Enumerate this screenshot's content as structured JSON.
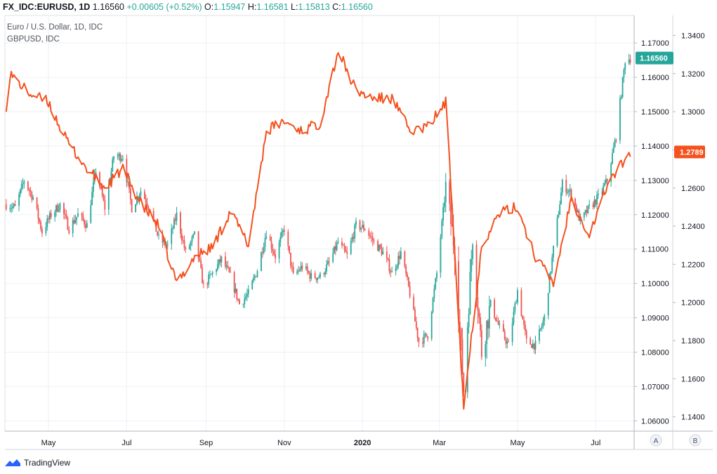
{
  "header": {
    "symbol": "FX_IDC:EURUSD, 1D",
    "last": "1.16560",
    "change": "+0.00605 (+0.52%)",
    "o_label": "O:",
    "o": "1.15947",
    "h_label": "H:",
    "h": "1.16581",
    "l_label": "L:",
    "l": "1.15813",
    "c_label": "C:",
    "c": "1.16560"
  },
  "legend": {
    "main": "Euro / U.S. Dollar, 1D, IDC",
    "compare": "GBPUSD, IDC"
  },
  "footer": {
    "brand": "TradingView",
    "logo_icon": "tradingview-logo-icon"
  },
  "scale_buttons": [
    "A",
    "B"
  ],
  "colors": {
    "up": "#26a69a",
    "down": "#ef5350",
    "compare": "#f4511e",
    "grid": "#eef0f3"
  },
  "chart_data": {
    "type": "line",
    "x_labels": [
      "May",
      "Jul",
      "Sep",
      "Nov",
      "2020",
      "Mar",
      "May",
      "Jul"
    ],
    "left_axis_ticks": [
      "1.06000",
      "1.07000",
      "1.08000",
      "1.09000",
      "1.10000",
      "1.11000",
      "1.12000",
      "1.13000",
      "1.14000",
      "1.15000",
      "1.16000",
      "1.17000"
    ],
    "right_axis_ticks": [
      "1.1400",
      "1.1600",
      "1.1800",
      "1.2000",
      "1.2200",
      "1.2400",
      "1.2600",
      "1.2800",
      "1.3000",
      "1.3200",
      "1.3400"
    ],
    "left_ylim": [
      1.057,
      1.178
    ],
    "right_ylim": [
      1.1325,
      1.3505
    ],
    "grid": true,
    "last_value_labels": {
      "eurusd": "1.16560",
      "gbpusd": "1.2789"
    },
    "series": [
      {
        "name": "EURUSD",
        "kind": "candlestick",
        "axis": "left",
        "points": [
          {
            "d": "2019-03-29",
            "v": 1.123
          },
          {
            "d": "2019-04-05",
            "v": 1.122
          },
          {
            "d": "2019-04-12",
            "v": 1.13
          },
          {
            "d": "2019-04-19",
            "v": 1.125
          },
          {
            "d": "2019-04-26",
            "v": 1.115
          },
          {
            "d": "2019-05-03",
            "v": 1.12
          },
          {
            "d": "2019-05-10",
            "v": 1.123
          },
          {
            "d": "2019-05-17",
            "v": 1.116
          },
          {
            "d": "2019-05-24",
            "v": 1.12
          },
          {
            "d": "2019-05-31",
            "v": 1.117
          },
          {
            "d": "2019-06-07",
            "v": 1.133
          },
          {
            "d": "2019-06-14",
            "v": 1.122
          },
          {
            "d": "2019-06-21",
            "v": 1.137
          },
          {
            "d": "2019-06-28",
            "v": 1.137
          },
          {
            "d": "2019-07-05",
            "v": 1.122
          },
          {
            "d": "2019-07-12",
            "v": 1.127
          },
          {
            "d": "2019-07-19",
            "v": 1.122
          },
          {
            "d": "2019-07-26",
            "v": 1.113
          },
          {
            "d": "2019-08-02",
            "v": 1.111
          },
          {
            "d": "2019-08-09",
            "v": 1.12
          },
          {
            "d": "2019-08-16",
            "v": 1.109
          },
          {
            "d": "2019-08-23",
            "v": 1.114
          },
          {
            "d": "2019-08-30",
            "v": 1.099
          },
          {
            "d": "2019-09-06",
            "v": 1.103
          },
          {
            "d": "2019-09-13",
            "v": 1.107
          },
          {
            "d": "2019-09-20",
            "v": 1.102
          },
          {
            "d": "2019-09-27",
            "v": 1.094
          },
          {
            "d": "2019-10-04",
            "v": 1.097
          },
          {
            "d": "2019-10-11",
            "v": 1.104
          },
          {
            "d": "2019-10-18",
            "v": 1.115
          },
          {
            "d": "2019-10-25",
            "v": 1.108
          },
          {
            "d": "2019-11-01",
            "v": 1.116
          },
          {
            "d": "2019-11-08",
            "v": 1.102
          },
          {
            "d": "2019-11-15",
            "v": 1.105
          },
          {
            "d": "2019-11-22",
            "v": 1.102
          },
          {
            "d": "2019-11-29",
            "v": 1.102
          },
          {
            "d": "2019-12-06",
            "v": 1.106
          },
          {
            "d": "2019-12-13",
            "v": 1.112
          },
          {
            "d": "2019-12-20",
            "v": 1.108
          },
          {
            "d": "2019-12-27",
            "v": 1.117
          },
          {
            "d": "2020-01-03",
            "v": 1.116
          },
          {
            "d": "2020-01-10",
            "v": 1.112
          },
          {
            "d": "2020-01-17",
            "v": 1.109
          },
          {
            "d": "2020-01-24",
            "v": 1.103
          },
          {
            "d": "2020-01-31",
            "v": 1.109
          },
          {
            "d": "2020-02-07",
            "v": 1.097
          },
          {
            "d": "2020-02-14",
            "v": 1.083
          },
          {
            "d": "2020-02-21",
            "v": 1.085
          },
          {
            "d": "2020-02-28",
            "v": 1.103
          },
          {
            "d": "2020-03-06",
            "v": 1.128
          },
          {
            "d": "2020-03-13",
            "v": 1.11
          },
          {
            "d": "2020-03-20",
            "v": 1.069
          },
          {
            "d": "2020-03-27",
            "v": 1.114
          },
          {
            "d": "2020-04-03",
            "v": 1.08
          },
          {
            "d": "2020-04-10",
            "v": 1.094
          },
          {
            "d": "2020-04-17",
            "v": 1.087
          },
          {
            "d": "2020-04-24",
            "v": 1.082
          },
          {
            "d": "2020-05-01",
            "v": 1.098
          },
          {
            "d": "2020-05-08",
            "v": 1.083
          },
          {
            "d": "2020-05-15",
            "v": 1.082
          },
          {
            "d": "2020-05-22",
            "v": 1.09
          },
          {
            "d": "2020-05-29",
            "v": 1.11
          },
          {
            "d": "2020-06-05",
            "v": 1.129
          },
          {
            "d": "2020-06-12",
            "v": 1.126
          },
          {
            "d": "2020-06-19",
            "v": 1.118
          },
          {
            "d": "2020-06-26",
            "v": 1.122
          },
          {
            "d": "2020-07-03",
            "v": 1.125
          },
          {
            "d": "2020-07-10",
            "v": 1.13
          },
          {
            "d": "2020-07-17",
            "v": 1.143
          },
          {
            "d": "2020-07-24",
            "v": 1.165
          },
          {
            "d": "2020-07-28",
            "v": 1.1656
          }
        ]
      },
      {
        "name": "GBPUSD",
        "kind": "line",
        "axis": "right",
        "points": [
          {
            "d": "2019-03-29",
            "v": 1.303
          },
          {
            "d": "2019-04-01",
            "v": 1.32
          },
          {
            "d": "2019-04-15",
            "v": 1.31
          },
          {
            "d": "2019-05-01",
            "v": 1.305
          },
          {
            "d": "2019-05-15",
            "v": 1.285
          },
          {
            "d": "2019-05-31",
            "v": 1.27
          },
          {
            "d": "2019-06-14",
            "v": 1.26
          },
          {
            "d": "2019-06-28",
            "v": 1.27
          },
          {
            "d": "2019-07-12",
            "v": 1.252
          },
          {
            "d": "2019-07-26",
            "v": 1.24
          },
          {
            "d": "2019-08-09",
            "v": 1.21
          },
          {
            "d": "2019-08-23",
            "v": 1.224
          },
          {
            "d": "2019-09-06",
            "v": 1.229
          },
          {
            "d": "2019-09-20",
            "v": 1.248
          },
          {
            "d": "2019-10-04",
            "v": 1.23
          },
          {
            "d": "2019-10-18",
            "v": 1.29
          },
          {
            "d": "2019-11-01",
            "v": 1.295
          },
          {
            "d": "2019-11-15",
            "v": 1.29
          },
          {
            "d": "2019-11-29",
            "v": 1.294
          },
          {
            "d": "2019-12-13",
            "v": 1.332
          },
          {
            "d": "2019-12-27",
            "v": 1.311
          },
          {
            "d": "2020-01-10",
            "v": 1.307
          },
          {
            "d": "2020-01-24",
            "v": 1.307
          },
          {
            "d": "2020-02-07",
            "v": 1.29
          },
          {
            "d": "2020-02-21",
            "v": 1.292
          },
          {
            "d": "2020-03-06",
            "v": 1.305
          },
          {
            "d": "2020-03-13",
            "v": 1.229
          },
          {
            "d": "2020-03-20",
            "v": 1.145
          },
          {
            "d": "2020-04-03",
            "v": 1.23
          },
          {
            "d": "2020-04-17",
            "v": 1.247
          },
          {
            "d": "2020-05-01",
            "v": 1.25
          },
          {
            "d": "2020-05-15",
            "v": 1.224
          },
          {
            "d": "2020-05-29",
            "v": 1.21
          },
          {
            "d": "2020-06-12",
            "v": 1.255
          },
          {
            "d": "2020-06-26",
            "v": 1.235
          },
          {
            "d": "2020-07-10",
            "v": 1.262
          },
          {
            "d": "2020-07-24",
            "v": 1.275
          },
          {
            "d": "2020-07-28",
            "v": 1.2789
          }
        ]
      }
    ]
  }
}
